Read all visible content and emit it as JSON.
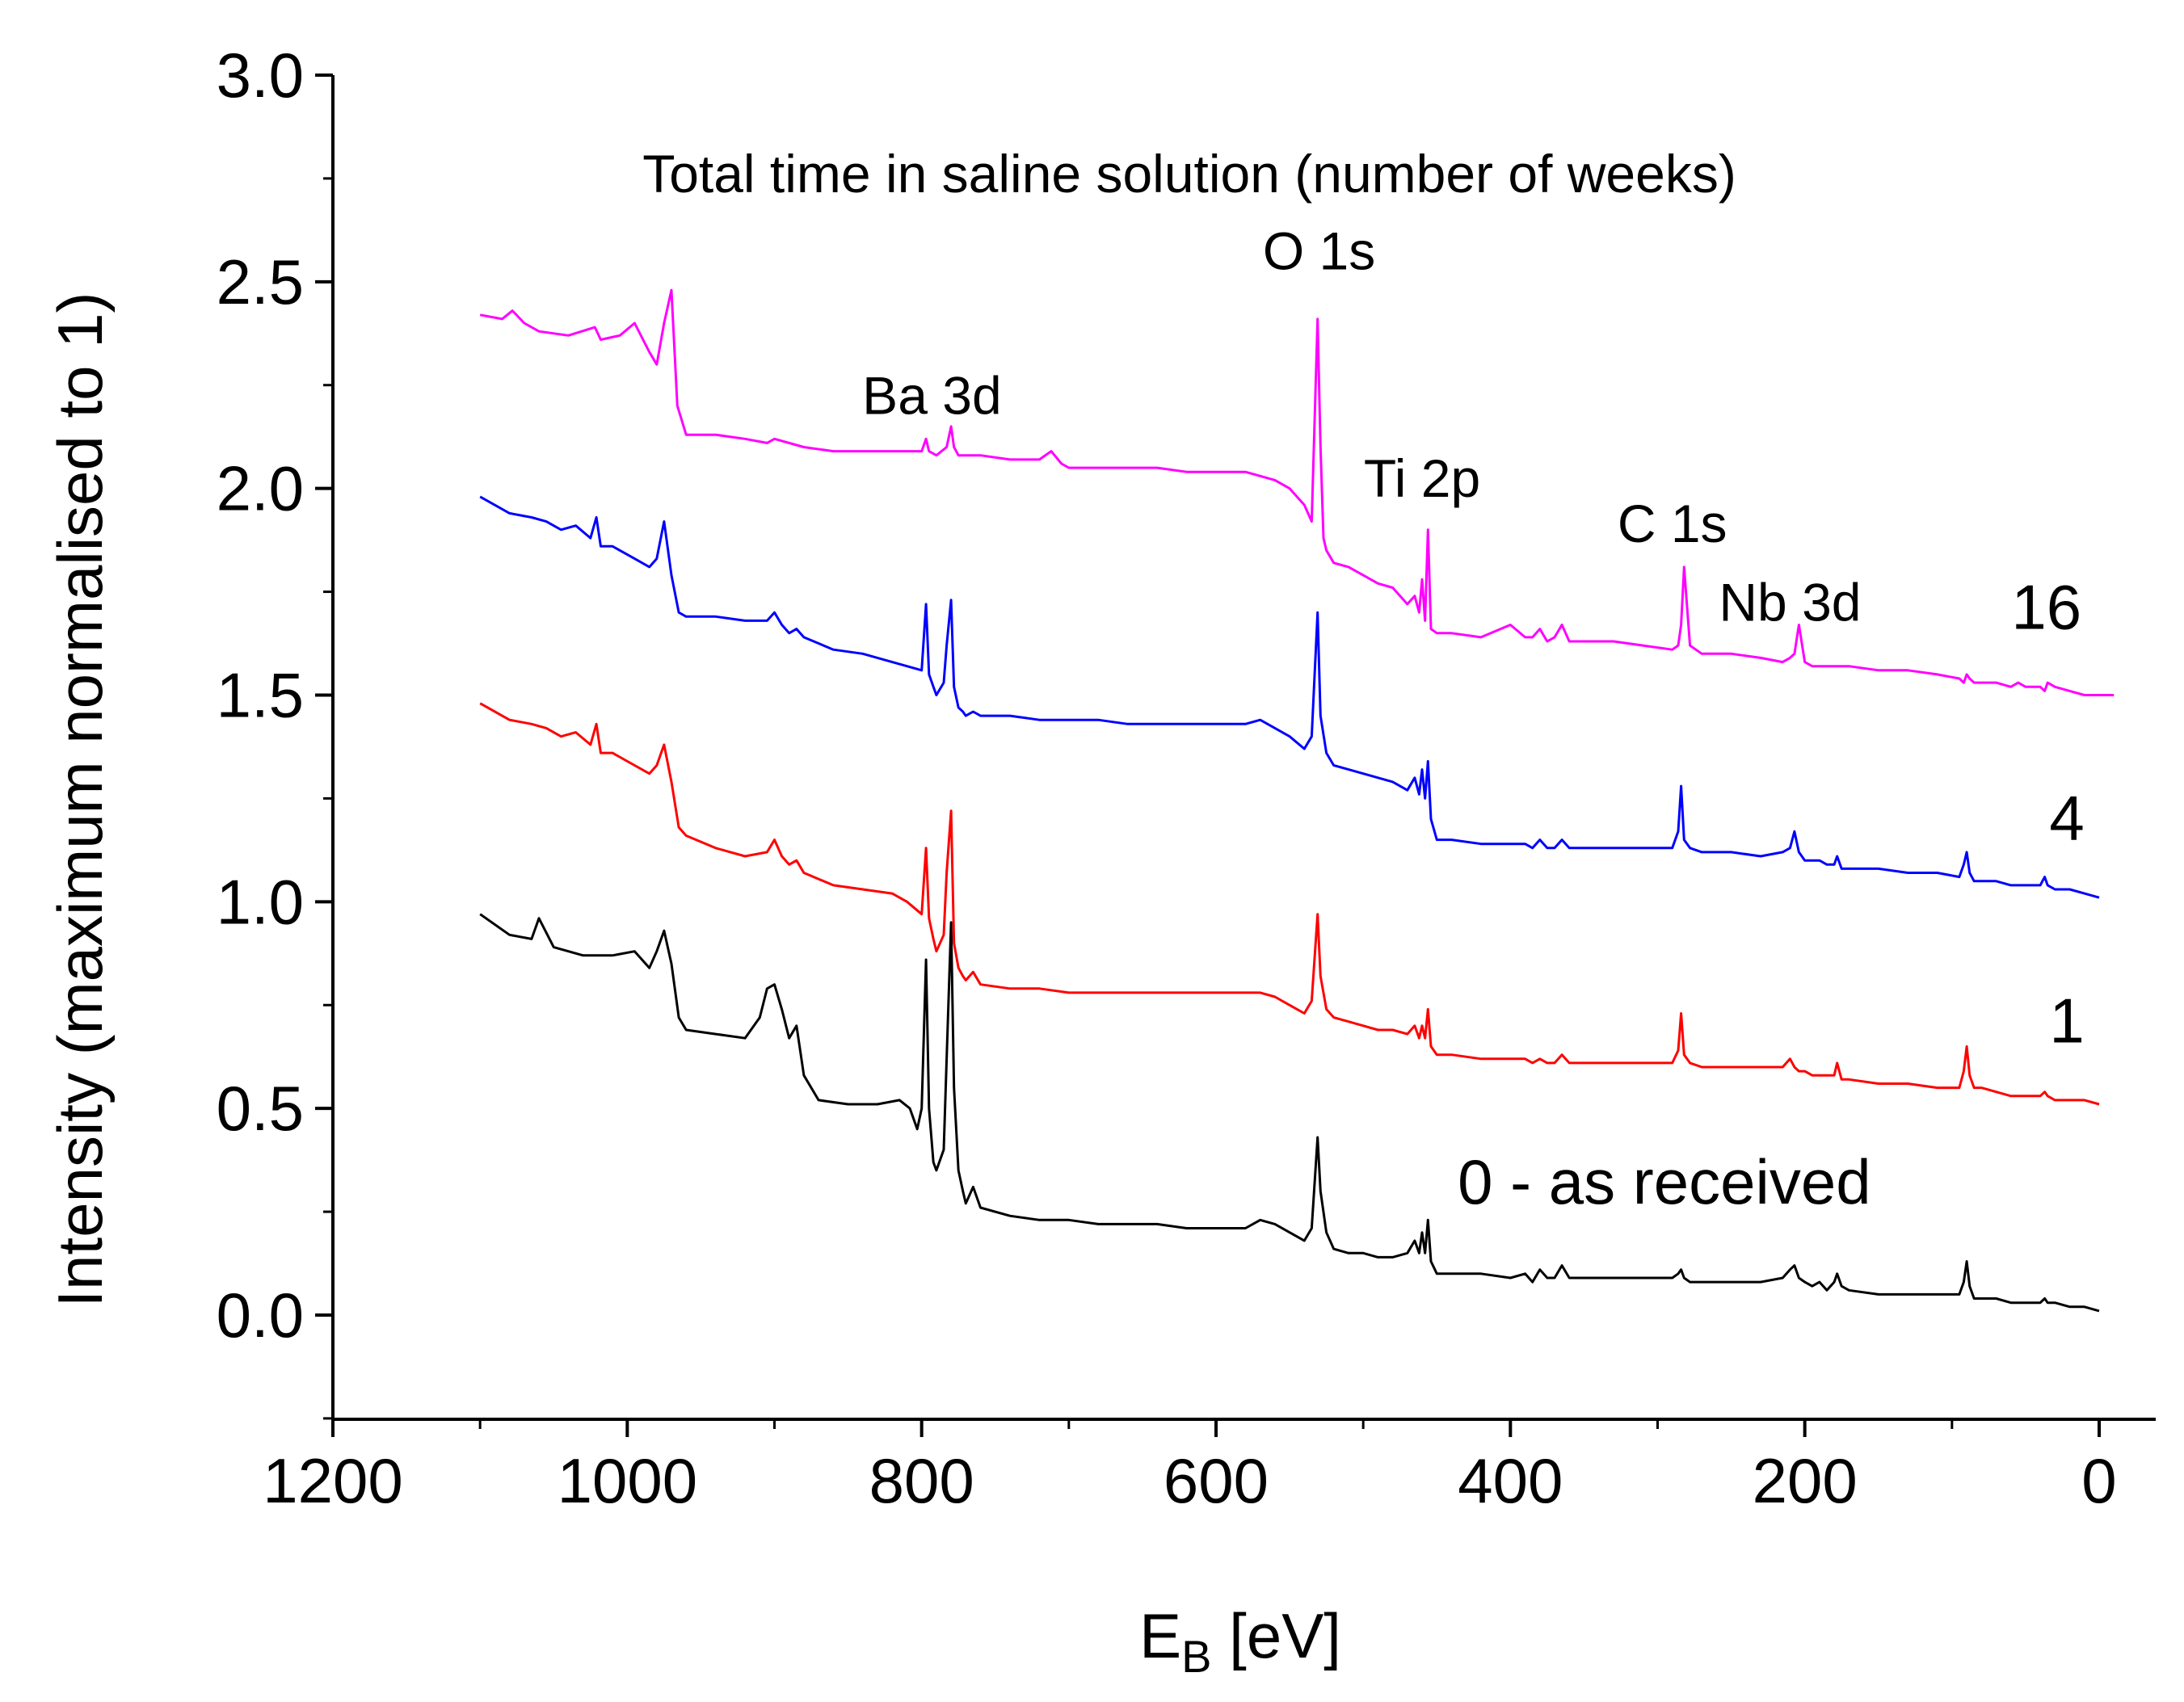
{
  "chart_data": {
    "type": "line",
    "title": "Total time in saline solution (number of weeks)",
    "xlabel": "E",
    "xlabel_sub": "B",
    "xlabel_unit": " [eV]",
    "ylabel": "Intensity (maximum normalised to 1)",
    "xlim": [
      1200,
      0
    ],
    "ylim": [
      -0.25,
      3.0
    ],
    "x_ticks": [
      1200,
      1000,
      800,
      600,
      400,
      200,
      0
    ],
    "x_tick_labels": [
      "1200",
      "1000",
      "800",
      "600",
      "400",
      "200",
      "0"
    ],
    "y_ticks": [
      0.0,
      0.5,
      1.0,
      1.5,
      2.0,
      2.5,
      3.0
    ],
    "y_tick_labels": [
      "0.0",
      "0.5",
      "1.0",
      "1.5",
      "2.0",
      "2.5",
      "3.0"
    ],
    "grid": false,
    "peak_annotations": [
      {
        "text": "O 1s",
        "x": 530,
        "y": 2.53
      },
      {
        "text": "Ba 3d",
        "x": 793,
        "y": 2.18
      },
      {
        "text": "Ti 2p",
        "x": 460,
        "y": 1.98
      },
      {
        "text": "C 1s",
        "x": 290,
        "y": 1.87
      },
      {
        "text": "Nb 3d",
        "x": 210,
        "y": 1.68
      }
    ],
    "series": [
      {
        "name": "0 - as received",
        "label": "0 - as received",
        "color": "#000000",
        "label_pos": {
          "x": 155,
          "y": 0.27
        },
        "x": [
          1100,
          1080,
          1065,
          1060,
          1050,
          1030,
          1010,
          995,
          985,
          980,
          975,
          970,
          965,
          960,
          940,
          920,
          910,
          905,
          900,
          895,
          890,
          885,
          880,
          870,
          850,
          830,
          815,
          808,
          803,
          800,
          797,
          795,
          792,
          790,
          785,
          783,
          780,
          778,
          775,
          772,
          770,
          765,
          760,
          740,
          720,
          700,
          680,
          660,
          640,
          620,
          600,
          580,
          570,
          560,
          550,
          540,
          535,
          531,
          529,
          525,
          520,
          510,
          500,
          490,
          480,
          470,
          465,
          462,
          460,
          458,
          456,
          454,
          450,
          440,
          420,
          400,
          390,
          385,
          380,
          375,
          370,
          365,
          360,
          350,
          330,
          310,
          290,
          286,
          284,
          282,
          278,
          270,
          250,
          230,
          215,
          210,
          207,
          204,
          200,
          195,
          190,
          185,
          180,
          178,
          175,
          170,
          150,
          130,
          110,
          95,
          92,
          90,
          88,
          85,
          80,
          70,
          60,
          50,
          40,
          37,
          35,
          30,
          20,
          10,
          0
        ],
        "y": [
          0.97,
          0.92,
          0.91,
          0.96,
          0.89,
          0.87,
          0.87,
          0.88,
          0.84,
          0.88,
          0.93,
          0.85,
          0.72,
          0.69,
          0.68,
          0.67,
          0.72,
          0.79,
          0.8,
          0.74,
          0.67,
          0.7,
          0.58,
          0.52,
          0.51,
          0.51,
          0.52,
          0.5,
          0.45,
          0.5,
          0.86,
          0.5,
          0.37,
          0.35,
          0.4,
          0.62,
          0.95,
          0.55,
          0.35,
          0.3,
          0.27,
          0.31,
          0.26,
          0.24,
          0.23,
          0.23,
          0.22,
          0.22,
          0.22,
          0.21,
          0.21,
          0.21,
          0.23,
          0.22,
          0.2,
          0.18,
          0.21,
          0.43,
          0.3,
          0.2,
          0.16,
          0.15,
          0.15,
          0.14,
          0.14,
          0.15,
          0.18,
          0.15,
          0.2,
          0.15,
          0.23,
          0.13,
          0.1,
          0.1,
          0.1,
          0.09,
          0.1,
          0.08,
          0.11,
          0.09,
          0.09,
          0.12,
          0.09,
          0.09,
          0.09,
          0.09,
          0.09,
          0.1,
          0.11,
          0.09,
          0.08,
          0.08,
          0.08,
          0.08,
          0.09,
          0.11,
          0.12,
          0.09,
          0.08,
          0.07,
          0.08,
          0.06,
          0.08,
          0.1,
          0.07,
          0.06,
          0.05,
          0.05,
          0.05,
          0.05,
          0.08,
          0.13,
          0.07,
          0.04,
          0.04,
          0.04,
          0.03,
          0.03,
          0.03,
          0.04,
          0.03,
          0.03,
          0.02,
          0.02,
          0.01
        ]
      },
      {
        "name": "1",
        "label": "1",
        "color": "#ff0000",
        "label_pos": {
          "x": 10,
          "y": 0.66
        },
        "x": [
          1100,
          1080,
          1065,
          1055,
          1045,
          1035,
          1025,
          1021,
          1018,
          1010,
          995,
          985,
          980,
          975,
          970,
          965,
          960,
          940,
          920,
          905,
          900,
          895,
          890,
          885,
          880,
          860,
          840,
          820,
          810,
          800,
          797,
          795,
          792,
          790,
          785,
          783,
          780,
          778,
          775,
          772,
          770,
          765,
          760,
          740,
          720,
          700,
          680,
          660,
          640,
          620,
          600,
          580,
          570,
          560,
          550,
          540,
          535,
          531,
          529,
          525,
          520,
          510,
          500,
          490,
          480,
          470,
          465,
          462,
          460,
          458,
          456,
          454,
          450,
          440,
          420,
          400,
          390,
          385,
          380,
          375,
          370,
          365,
          360,
          350,
          330,
          310,
          290,
          286,
          284,
          282,
          278,
          270,
          250,
          230,
          215,
          210,
          207,
          204,
          200,
          195,
          190,
          185,
          180,
          178,
          175,
          170,
          150,
          130,
          110,
          95,
          92,
          90,
          88,
          85,
          80,
          70,
          60,
          50,
          40,
          37,
          35,
          30,
          20,
          10,
          0
        ],
        "y": [
          1.48,
          1.44,
          1.43,
          1.42,
          1.4,
          1.41,
          1.38,
          1.43,
          1.36,
          1.36,
          1.33,
          1.31,
          1.33,
          1.38,
          1.29,
          1.18,
          1.16,
          1.13,
          1.11,
          1.12,
          1.15,
          1.11,
          1.09,
          1.1,
          1.07,
          1.04,
          1.03,
          1.02,
          1.0,
          0.97,
          1.13,
          0.96,
          0.91,
          0.88,
          0.92,
          1.07,
          1.22,
          0.9,
          0.84,
          0.82,
          0.81,
          0.83,
          0.8,
          0.79,
          0.79,
          0.78,
          0.78,
          0.78,
          0.78,
          0.78,
          0.78,
          0.78,
          0.78,
          0.77,
          0.75,
          0.73,
          0.76,
          0.97,
          0.82,
          0.74,
          0.72,
          0.71,
          0.7,
          0.69,
          0.69,
          0.68,
          0.7,
          0.67,
          0.7,
          0.67,
          0.74,
          0.65,
          0.63,
          0.63,
          0.62,
          0.62,
          0.62,
          0.61,
          0.62,
          0.61,
          0.61,
          0.63,
          0.61,
          0.61,
          0.61,
          0.61,
          0.61,
          0.64,
          0.73,
          0.63,
          0.61,
          0.6,
          0.6,
          0.6,
          0.6,
          0.62,
          0.6,
          0.59,
          0.59,
          0.58,
          0.58,
          0.58,
          0.58,
          0.61,
          0.57,
          0.57,
          0.56,
          0.56,
          0.55,
          0.55,
          0.59,
          0.65,
          0.58,
          0.55,
          0.55,
          0.54,
          0.53,
          0.53,
          0.53,
          0.54,
          0.53,
          0.52,
          0.52,
          0.52,
          0.51
        ]
      },
      {
        "name": "4",
        "label": "4",
        "color": "#0000ff",
        "label_pos": {
          "x": 10,
          "y": 1.15
        },
        "x": [
          1100,
          1080,
          1065,
          1055,
          1045,
          1035,
          1025,
          1021,
          1018,
          1010,
          995,
          985,
          980,
          975,
          970,
          965,
          960,
          940,
          920,
          905,
          900,
          895,
          890,
          885,
          880,
          860,
          840,
          820,
          810,
          800,
          797,
          795,
          792,
          790,
          785,
          783,
          780,
          778,
          775,
          772,
          770,
          765,
          760,
          740,
          720,
          700,
          680,
          660,
          640,
          620,
          600,
          580,
          570,
          560,
          550,
          540,
          535,
          531,
          529,
          525,
          520,
          510,
          500,
          490,
          480,
          470,
          465,
          462,
          460,
          458,
          456,
          454,
          450,
          440,
          420,
          400,
          390,
          385,
          380,
          375,
          370,
          365,
          360,
          350,
          330,
          310,
          290,
          286,
          284,
          282,
          278,
          270,
          250,
          230,
          215,
          210,
          207,
          204,
          200,
          195,
          190,
          185,
          180,
          178,
          175,
          170,
          150,
          130,
          110,
          95,
          92,
          90,
          88,
          85,
          80,
          70,
          60,
          50,
          40,
          37,
          35,
          30,
          20,
          10,
          0
        ],
        "y": [
          1.98,
          1.94,
          1.93,
          1.92,
          1.9,
          1.91,
          1.88,
          1.93,
          1.86,
          1.86,
          1.83,
          1.81,
          1.83,
          1.92,
          1.79,
          1.7,
          1.69,
          1.69,
          1.68,
          1.68,
          1.7,
          1.67,
          1.65,
          1.66,
          1.64,
          1.61,
          1.6,
          1.58,
          1.57,
          1.56,
          1.72,
          1.55,
          1.52,
          1.5,
          1.53,
          1.62,
          1.73,
          1.52,
          1.47,
          1.46,
          1.45,
          1.46,
          1.45,
          1.45,
          1.44,
          1.44,
          1.44,
          1.43,
          1.43,
          1.43,
          1.43,
          1.43,
          1.44,
          1.42,
          1.4,
          1.37,
          1.4,
          1.7,
          1.45,
          1.36,
          1.33,
          1.32,
          1.31,
          1.3,
          1.29,
          1.27,
          1.3,
          1.26,
          1.32,
          1.25,
          1.34,
          1.2,
          1.15,
          1.15,
          1.14,
          1.14,
          1.14,
          1.13,
          1.15,
          1.13,
          1.13,
          1.15,
          1.13,
          1.13,
          1.13,
          1.13,
          1.13,
          1.17,
          1.28,
          1.15,
          1.13,
          1.12,
          1.12,
          1.11,
          1.12,
          1.13,
          1.17,
          1.12,
          1.1,
          1.1,
          1.1,
          1.09,
          1.09,
          1.11,
          1.08,
          1.08,
          1.08,
          1.07,
          1.07,
          1.06,
          1.09,
          1.12,
          1.07,
          1.05,
          1.05,
          1.05,
          1.04,
          1.04,
          1.04,
          1.06,
          1.04,
          1.03,
          1.03,
          1.02,
          1.01
        ]
      },
      {
        "name": "16",
        "label": "16",
        "color": "#ff00ff",
        "label_pos": {
          "x": 12,
          "y": 1.66
        },
        "x": [
          1100,
          1085,
          1078,
          1070,
          1060,
          1040,
          1022,
          1018,
          1005,
          995,
          985,
          980,
          975,
          970,
          966,
          960,
          940,
          920,
          905,
          900,
          880,
          860,
          840,
          820,
          800,
          797,
          795,
          790,
          783,
          780,
          778,
          775,
          760,
          740,
          720,
          712,
          705,
          700,
          680,
          660,
          640,
          620,
          600,
          580,
          570,
          560,
          550,
          540,
          535,
          531,
          529,
          527,
          525,
          520,
          510,
          500,
          490,
          480,
          470,
          465,
          462,
          460,
          458,
          456,
          454,
          450,
          440,
          420,
          400,
          390,
          385,
          380,
          375,
          370,
          365,
          360,
          350,
          330,
          310,
          290,
          286,
          284,
          282,
          278,
          270,
          250,
          230,
          215,
          210,
          207,
          204,
          200,
          195,
          190,
          185,
          180,
          175,
          170,
          150,
          130,
          110,
          95,
          92,
          90,
          88,
          85,
          80,
          70,
          60,
          55,
          50,
          40,
          37,
          35,
          30,
          20,
          10,
          -10
        ],
        "y": [
          2.42,
          2.41,
          2.43,
          2.4,
          2.38,
          2.37,
          2.39,
          2.36,
          2.37,
          2.4,
          2.33,
          2.3,
          2.4,
          2.48,
          2.2,
          2.13,
          2.13,
          2.12,
          2.11,
          2.12,
          2.1,
          2.09,
          2.09,
          2.09,
          2.09,
          2.12,
          2.09,
          2.08,
          2.1,
          2.15,
          2.1,
          2.08,
          2.08,
          2.07,
          2.07,
          2.09,
          2.06,
          2.05,
          2.05,
          2.05,
          2.05,
          2.04,
          2.04,
          2.04,
          2.03,
          2.02,
          2.0,
          1.96,
          1.92,
          2.41,
          2.1,
          1.88,
          1.85,
          1.82,
          1.81,
          1.79,
          1.77,
          1.76,
          1.72,
          1.74,
          1.7,
          1.78,
          1.68,
          1.9,
          1.66,
          1.65,
          1.65,
          1.64,
          1.67,
          1.64,
          1.64,
          1.66,
          1.63,
          1.64,
          1.67,
          1.63,
          1.63,
          1.63,
          1.62,
          1.61,
          1.62,
          1.67,
          1.81,
          1.62,
          1.6,
          1.6,
          1.59,
          1.58,
          1.59,
          1.6,
          1.67,
          1.58,
          1.57,
          1.57,
          1.57,
          1.57,
          1.57,
          1.57,
          1.56,
          1.56,
          1.55,
          1.54,
          1.53,
          1.55,
          1.54,
          1.53,
          1.53,
          1.53,
          1.52,
          1.53,
          1.52,
          1.52,
          1.51,
          1.53,
          1.52,
          1.51,
          1.5,
          1.5
        ]
      }
    ]
  }
}
